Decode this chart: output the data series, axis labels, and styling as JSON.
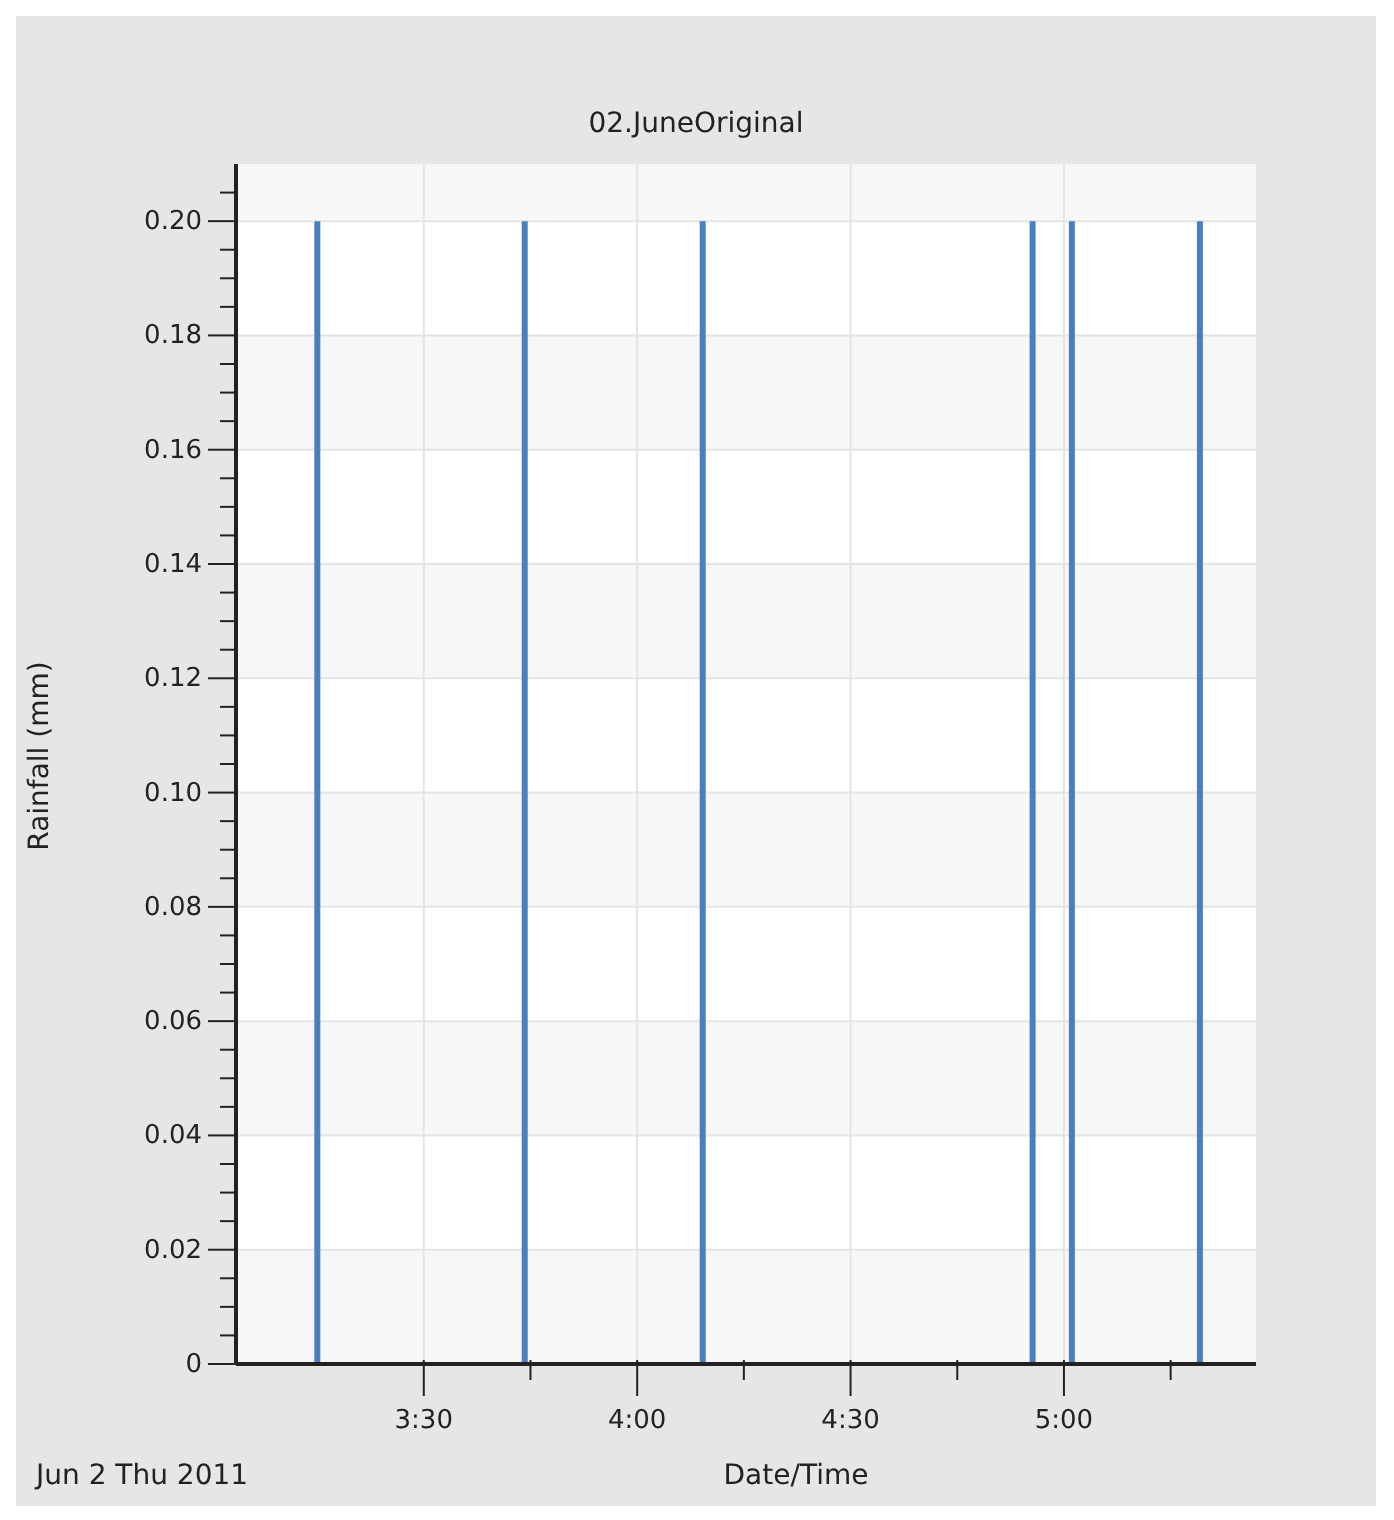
{
  "chart_data": {
    "type": "bar",
    "title": "02.JuneOriginal",
    "xlabel": "Date/Time",
    "ylabel": "Rainfall (mm)",
    "annotations": [
      "Jun 2 Thu 2011"
    ],
    "x": [
      3.252,
      3.738,
      4.155,
      4.928,
      5.02,
      5.32
    ],
    "values": [
      0.2,
      0.2,
      0.2,
      0.2,
      0.2,
      0.2
    ],
    "color": "#4a7ebf",
    "xlim": [
      3.06,
      5.45
    ],
    "xticks": [
      {
        "value": 3.5,
        "label": "3:30"
      },
      {
        "value": 3.75,
        "label": null
      },
      {
        "value": 4,
        "label": "4:00"
      },
      {
        "value": 4.25,
        "label": null
      },
      {
        "value": 4.5,
        "label": "4:30"
      },
      {
        "value": 4.75,
        "label": null
      },
      {
        "value": 5,
        "label": "5:00"
      },
      {
        "value": 5.25,
        "label": null
      }
    ],
    "ylim": [
      0,
      0.21
    ],
    "yticks": [
      0,
      {
        "value": 0.005,
        "label": null
      },
      {
        "value": 0.01,
        "label": null
      },
      {
        "value": 0.015,
        "label": null
      },
      0.02,
      {
        "value": 0.025,
        "label": null
      },
      {
        "value": 0.03,
        "label": null
      },
      {
        "value": 0.035,
        "label": null
      },
      0.04,
      {
        "value": 0.045,
        "label": null
      },
      {
        "value": 0.05,
        "label": null
      },
      {
        "value": 0.055,
        "label": null
      },
      0.06,
      {
        "value": 0.065,
        "label": null
      },
      {
        "value": 0.07,
        "label": null
      },
      {
        "value": 0.075,
        "label": null
      },
      0.08,
      {
        "value": 0.085,
        "label": null
      },
      {
        "value": 0.09,
        "label": null
      },
      {
        "value": 0.095,
        "label": null
      },
      {
        "value": 0.1,
        "label": "0.10"
      },
      {
        "value": 0.105,
        "label": null
      },
      {
        "value": 0.11,
        "label": null
      },
      {
        "value": 0.115,
        "label": null
      },
      0.12,
      {
        "value": 0.125,
        "label": null
      },
      {
        "value": 0.13,
        "label": null
      },
      {
        "value": 0.135,
        "label": null
      },
      0.14,
      {
        "value": 0.145,
        "label": null
      },
      {
        "value": 0.15,
        "label": null
      },
      {
        "value": 0.155,
        "label": null
      },
      0.16,
      {
        "value": 0.165,
        "label": null
      },
      {
        "value": 0.17,
        "label": null
      },
      {
        "value": 0.175,
        "label": null
      },
      0.18,
      {
        "value": 0.185,
        "label": null
      },
      {
        "value": 0.19,
        "label": null
      },
      {
        "value": 0.195,
        "label": null
      },
      {
        "value": 0.2,
        "label": "0.20"
      },
      {
        "value": 0.205,
        "label": null
      }
    ],
    "grid": true
  }
}
